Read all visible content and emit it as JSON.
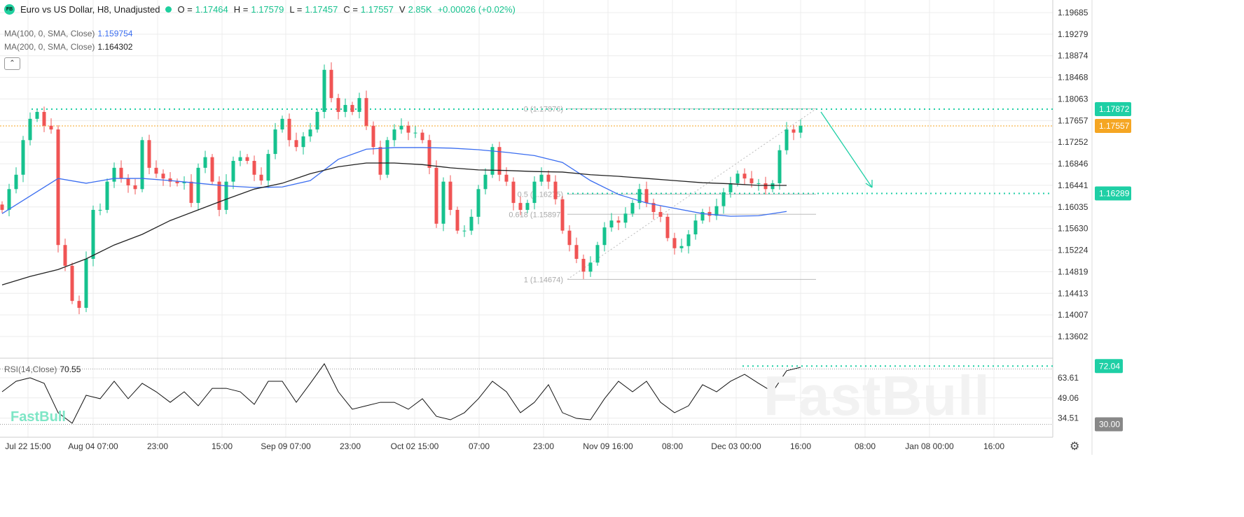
{
  "header": {
    "logo": "FB",
    "title": "Euro vs US Dollar, H8, Unadjusted",
    "o_label": "O =",
    "o": "1.17464",
    "h_label": "H =",
    "h": "1.17579",
    "l_label": "L =",
    "l": "1.17457",
    "c_label": "C =",
    "c": "1.17557",
    "v_label": "V",
    "v": "2.85K",
    "change": "+0.00026 (+0.02%)"
  },
  "indicators": {
    "ma100_label": "MA(100, 0, SMA, Close)",
    "ma100_value": "1.159754",
    "ma200_label": "MA(200, 0, SMA, Close)",
    "ma200_value": "1.164302",
    "rsi_label": "RSI(14,Close)",
    "rsi_value": "70.55",
    "collapse_icon": "chevron-up-icon"
  },
  "watermark": "FastBull",
  "colors": {
    "up": "#16c28e",
    "down": "#f05454",
    "ma100": "#3a6df0",
    "ma200": "#222222",
    "last_price": "#f5a623",
    "level": "#1ecfa5",
    "rsi_line": "#111111",
    "gray_tag": "#888888"
  },
  "chart_data": {
    "type": "candlestick",
    "price_axis": [
      "1.19685",
      "1.19279",
      "1.18874",
      "1.18468",
      "1.18063",
      "1.17657",
      "1.17252",
      "1.16846",
      "1.16441",
      "1.16035",
      "1.15630",
      "1.15224",
      "1.14819",
      "1.14413",
      "1.14007",
      "1.13602"
    ],
    "price_tags": [
      {
        "value": "1.17872",
        "kind": "level"
      },
      {
        "value": "1.17557",
        "kind": "last"
      },
      {
        "value": "1.16289",
        "kind": "level"
      }
    ],
    "time_axis": [
      "Jul 22 15:00",
      "Aug 04 07:00",
      "23:00",
      "15:00",
      "Sep 09 07:00",
      "23:00",
      "Oct 02 15:00",
      "07:00",
      "23:00",
      "Nov 09 16:00",
      "08:00",
      "Dec 03 00:00",
      "16:00",
      "08:00",
      "Jan 08 00:00",
      "16:00"
    ],
    "closes": [
      1.1598,
      1.1637,
      1.1664,
      1.1729,
      1.1769,
      1.1782,
      1.1756,
      1.1749,
      1.1532,
      1.1493,
      1.1427,
      1.1414,
      1.1506,
      1.1598,
      1.1598,
      1.1651,
      1.1677,
      1.1657,
      1.1644,
      1.1637,
      1.1729,
      1.1677,
      1.1666,
      1.1657,
      1.1651,
      1.1648,
      1.1651,
      1.1611,
      1.1677,
      1.1697,
      1.1651,
      1.1598,
      1.1651,
      1.169,
      1.1697,
      1.169,
      1.1664,
      1.1653,
      1.1703,
      1.1749,
      1.1769,
      1.1729,
      1.1716,
      1.1736,
      1.1749,
      1.1782,
      1.1861,
      1.1808,
      1.1782,
      1.1795,
      1.1782,
      1.1808,
      1.1756,
      1.1716,
      1.1664,
      1.1729,
      1.1749,
      1.1756,
      1.1743,
      1.1743,
      1.1729,
      1.1677,
      1.1572,
      1.1651,
      1.1598,
      1.1559,
      1.1559,
      1.1585,
      1.1637,
      1.1664,
      1.1716,
      1.1664,
      1.1651,
      1.1611,
      1.1598,
      1.1611,
      1.1651,
      1.1664,
      1.1651,
      1.1618,
      1.1559,
      1.1532,
      1.1506,
      1.1482,
      1.1499,
      1.1532,
      1.1565,
      1.1578,
      1.1574,
      1.1591,
      1.1611,
      1.1637,
      1.1611,
      1.1594,
      1.1585,
      1.1545,
      1.1526,
      1.153,
      1.1552,
      1.1578,
      1.1594,
      1.1587,
      1.1605,
      1.1631,
      1.1648,
      1.1666,
      1.1657,
      1.1648,
      1.1648,
      1.1637,
      1.1648,
      1.171,
      1.1749,
      1.1743,
      1.1756
    ],
    "ma100": [
      1.1591,
      1.1624,
      1.1657,
      1.1648,
      1.1657,
      1.1657,
      1.1653,
      1.1648,
      1.1643,
      1.164,
      1.1641,
      1.1653,
      1.1693,
      1.1712,
      1.1715,
      1.1715,
      1.1714,
      1.1711,
      1.1706,
      1.17,
      1.1687,
      1.1653,
      1.1627,
      1.1611,
      1.1601,
      1.1591,
      1.1586,
      1.1587,
      1.1595
    ],
    "ma200": [
      1.1457,
      1.1473,
      1.1486,
      1.1506,
      1.1532,
      1.1552,
      1.1578,
      1.1598,
      1.1618,
      1.1637,
      1.1648,
      1.1666,
      1.1679,
      1.1686,
      1.1686,
      1.1683,
      1.1677,
      1.1673,
      1.1672,
      1.167,
      1.1669,
      1.1664,
      1.1661,
      1.1657,
      1.1653,
      1.1649,
      1.1647,
      1.1644,
      1.1644
    ],
    "fibonacci": [
      {
        "label": "0 (1.17876)",
        "price": 1.17876
      },
      {
        "label": "0.5 (1.16275)",
        "price": 1.16275
      },
      {
        "label": "0.618 (1.15897)",
        "price": 1.15897
      },
      {
        "label": "1 (1.14674)",
        "price": 1.14674
      }
    ],
    "rsi": {
      "axis": [
        "63.61",
        "49.06",
        "34.51"
      ],
      "tags": [
        {
          "value": "72.04",
          "kind": "level"
        },
        {
          "value": "30.00",
          "kind": "gray"
        }
      ],
      "values": [
        53.5,
        61.1,
        63.6,
        59.6,
        38.4,
        30.8,
        51.0,
        48.5,
        61.1,
        48.5,
        59.6,
        53.5,
        45.9,
        53.5,
        43.4,
        56.0,
        56.0,
        53.5,
        44.4,
        61.1,
        61.1,
        45.9,
        59.6,
        73.7,
        53.5,
        40.9,
        43.4,
        45.9,
        45.9,
        40.9,
        48.5,
        35.8,
        33.3,
        38.4,
        48.5,
        61.1,
        53.5,
        38.4,
        45.9,
        58.6,
        38.4,
        34.3,
        33.3,
        48.5,
        61.1,
        53.5,
        61.1,
        45.9,
        38.4,
        43.4,
        58.6,
        53.5,
        61.1,
        66.1,
        59.6,
        53.5,
        68.7,
        71.2
      ]
    }
  }
}
